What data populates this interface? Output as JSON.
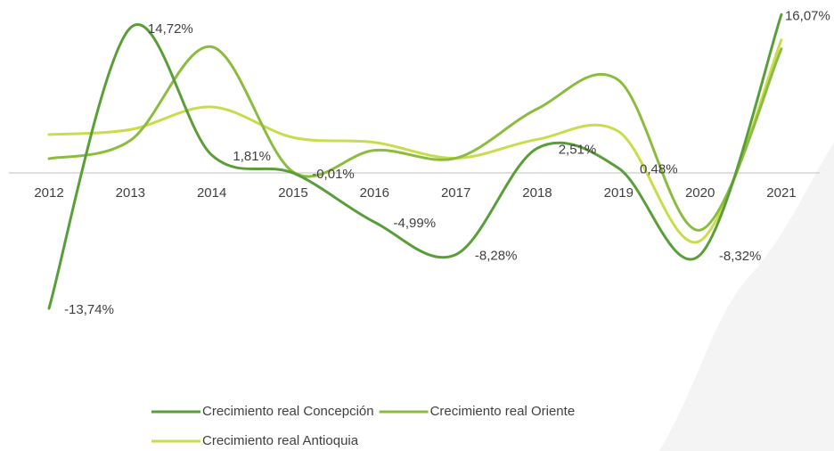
{
  "chart_data": {
    "type": "line",
    "categories": [
      "2012",
      "2013",
      "2014",
      "2015",
      "2016",
      "2017",
      "2018",
      "2019",
      "2020",
      "2021"
    ],
    "series": [
      {
        "name": "Crecimiento real Concepción",
        "color": "#5a9e3a",
        "values": [
          -13.74,
          14.72,
          1.81,
          -0.01,
          -4.99,
          -8.28,
          2.51,
          0.48,
          -8.32,
          16.07
        ],
        "value_labels": [
          "-13,74%",
          "14,72%",
          "1,81%",
          "-0,01%",
          "-4,99%",
          "-8,28%",
          "2,51%",
          "0,48%",
          "-8,32%",
          "16,07%"
        ]
      },
      {
        "name": "Crecimiento real Oriente",
        "color": "#8cbc3f",
        "values": [
          1.45,
          3.3,
          12.8,
          0.1,
          2.3,
          1.5,
          6.5,
          9.4,
          -5.8,
          12.6
        ]
      },
      {
        "name": "Crecimiento real Antioquia",
        "color": "#c9dd4c",
        "values": [
          3.9,
          4.4,
          6.7,
          3.6,
          3.1,
          1.5,
          3.4,
          4.2,
          -6.9,
          13.5
        ]
      }
    ],
    "ylim": [
      -16,
      17.5
    ],
    "legend": "bottom"
  }
}
